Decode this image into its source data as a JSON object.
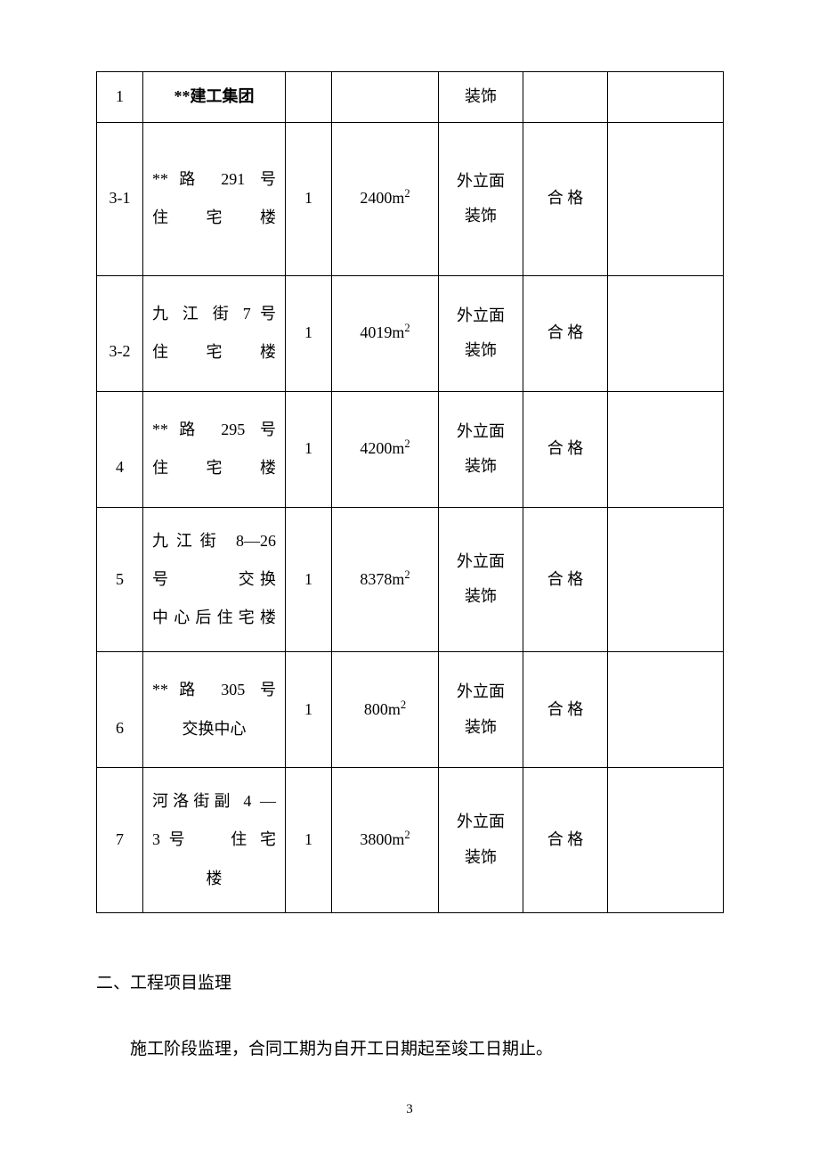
{
  "table": {
    "rows": [
      {
        "c1": "1",
        "c2": "**建工集团",
        "c2_bold": true,
        "c3": "",
        "c4": "",
        "c5": "装饰",
        "c6": "",
        "c7": ""
      },
      {
        "c1": "3-1",
        "c2_line1": "**路 291 号",
        "c2_line2": "住 宅 楼",
        "c3": "1",
        "c4_val": "2400m",
        "c4_sup": "2",
        "c5_line1": "外立面",
        "c5_line2": "装饰",
        "c6": "合 格",
        "c7": ""
      },
      {
        "c1": "3-2",
        "c2_line1": "九 江 街 7 号",
        "c2_line2": "住 宅 楼",
        "c3": "1",
        "c4_val": "4019m",
        "c4_sup": "2",
        "c5_line1": "外立面",
        "c5_line2": "装饰",
        "c6": "合 格",
        "c7": ""
      },
      {
        "c1": "4",
        "c2_line1": "**路 295 号",
        "c2_line2": "住 宅 楼",
        "c3": "1",
        "c4_val": "4200m",
        "c4_sup": "2",
        "c5_line1": "外立面",
        "c5_line2": "装饰",
        "c6": "合 格",
        "c7": ""
      },
      {
        "c1": "5",
        "c2_line1": "九江街 8—26",
        "c2_line2": "号　　　交换",
        "c2_line3": "中心后住宅楼",
        "c3": "1",
        "c4_val": "8378m",
        "c4_sup": "2",
        "c5_line1": "外立面",
        "c5_line2": "装饰",
        "c6": "合 格",
        "c7": ""
      },
      {
        "c1": "6",
        "c2_line1": "**路 305 号",
        "c2_line2": "交换中心",
        "c3": "1",
        "c4_val": "800m",
        "c4_sup": "2",
        "c5_line1": "外立面",
        "c5_line2": "装饰",
        "c6": "合 格",
        "c7": ""
      },
      {
        "c1": "7",
        "c2_line1": "河洛街副 4 —",
        "c2_line2": "3 号　　住 宅",
        "c2_line3": "楼",
        "c3": "1",
        "c4_val": "3800m",
        "c4_sup": "2",
        "c5_line1": "外立面",
        "c5_line2": "装饰",
        "c6": "合 格",
        "c7": ""
      }
    ]
  },
  "section": {
    "heading": "二、工程项目监理",
    "body": "施工阶段监理，合同工期为自开工日期起至竣工日期止。"
  },
  "page_number": "3"
}
